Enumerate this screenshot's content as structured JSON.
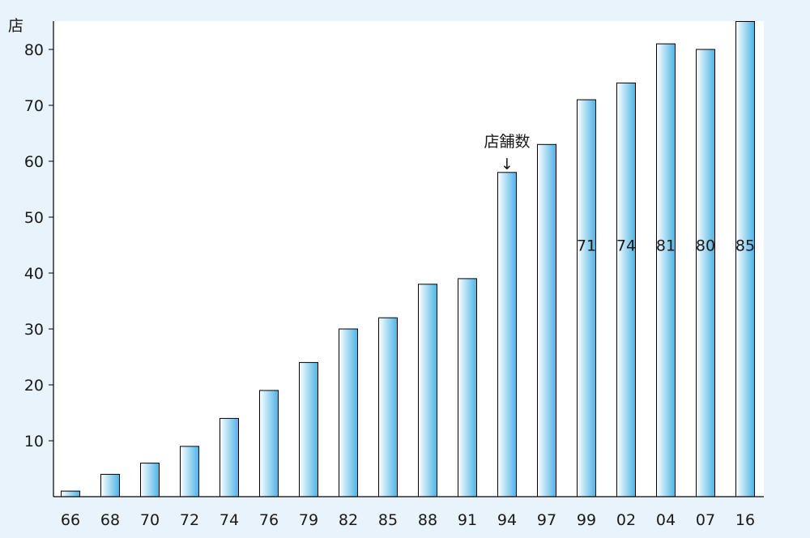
{
  "chart_data": {
    "type": "bar",
    "title": "",
    "xlabel": "",
    "ylabel": "店",
    "ylim": [
      0,
      85
    ],
    "yticks": [
      10,
      20,
      30,
      40,
      50,
      60,
      70,
      80
    ],
    "categories": [
      "66",
      "68",
      "70",
      "72",
      "74",
      "76",
      "79",
      "82",
      "85",
      "88",
      "91",
      "94",
      "97",
      "99",
      "02",
      "04",
      "07",
      "16"
    ],
    "values": [
      1,
      4,
      6,
      9,
      14,
      19,
      24,
      30,
      32,
      38,
      39,
      58,
      63,
      71,
      74,
      81,
      80,
      85
    ],
    "data_labels": [
      {
        "category": "99",
        "text": "71"
      },
      {
        "category": "02",
        "text": "74"
      },
      {
        "category": "04",
        "text": "81"
      },
      {
        "category": "07",
        "text": "80"
      },
      {
        "category": "16",
        "text": "85"
      }
    ],
    "annotation": {
      "text": "店舗数",
      "arrow": "↓",
      "category": "94"
    },
    "colors": {
      "bar_light": "#ffffff",
      "bar_dark": "#4cb3e6",
      "background": "#e8f3fc",
      "plot_bg": "#ffffff"
    },
    "grid": false,
    "legend": "none"
  }
}
